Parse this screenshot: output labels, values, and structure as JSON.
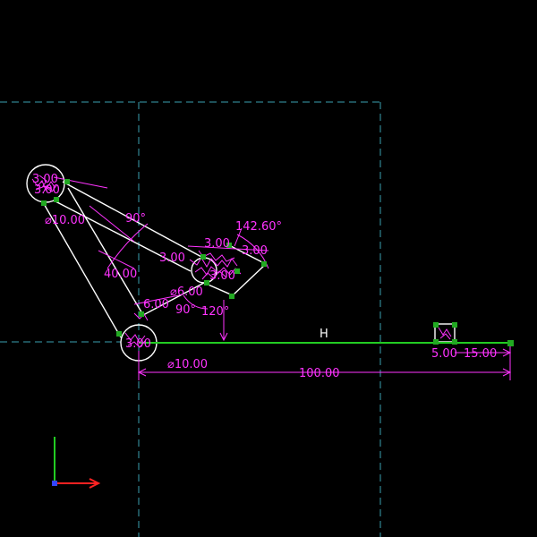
{
  "colors": {
    "background": "#000000",
    "construction": "#3aa0b0",
    "geometry": "#ffffff",
    "dimension": "#ff33ff",
    "constraint_line": "#22cc22",
    "point": "#22aa22",
    "axis_x": "#ff2222",
    "axis_y": "#22cc22",
    "axis_z": "#3344ff"
  },
  "dimensions": {
    "d_top_small": "3.00",
    "d_top_small2": "3.00",
    "d_dia_top": "⌀10.00",
    "d_angle_1": "90°",
    "d_angle_2": "142.60°",
    "d_len_mid": "3.00",
    "d_len_mid2": "3.00",
    "d_len_mid3": "3.00",
    "d_len_right": "3.00",
    "d_len_40": "40.00",
    "d_len_6": "6.00",
    "d_dia_6": "⌀6.00",
    "d_angle_3": "90°",
    "d_angle_4": "120°",
    "d_dia_bottom": "⌀10.00",
    "d_bottom_small": "3.00",
    "d_len_100": "100.00",
    "d_len_5": "5.00",
    "d_len_15": "15.00"
  },
  "constraint_label": "H",
  "icons": {
    "axis": "triad-axis-icon"
  }
}
